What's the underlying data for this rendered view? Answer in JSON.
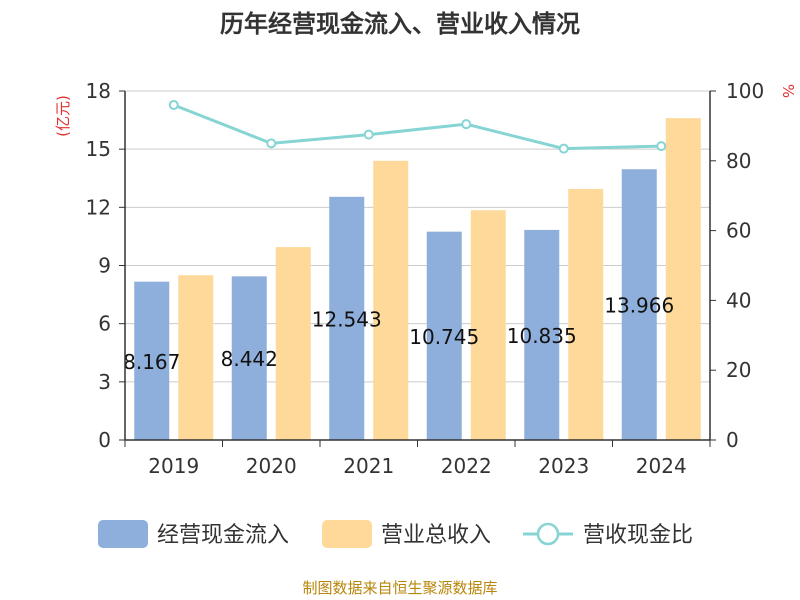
{
  "chart_data": {
    "type": "bar",
    "title": "历年经营现金流入、营业收入情况",
    "categories": [
      "2019",
      "2020",
      "2021",
      "2022",
      "2023",
      "2024"
    ],
    "y_left": {
      "unit": "(亿元)",
      "ticks": [
        "0",
        "3",
        "6",
        "9",
        "12",
        "15",
        "18"
      ],
      "lim": [
        0,
        18
      ]
    },
    "y_right": {
      "unit": "%",
      "ticks": [
        "0",
        "20",
        "40",
        "60",
        "80",
        "100"
      ],
      "lim": [
        0,
        100
      ]
    },
    "series": [
      {
        "name": "经营现金流入",
        "type": "bar",
        "axis": "left",
        "color": "#8eaedb",
        "values": [
          8.167,
          8.442,
          12.543,
          10.745,
          10.835,
          13.966
        ],
        "labels": [
          "8.167",
          "8.442",
          "12.543",
          "10.745",
          "10.835",
          "13.966"
        ]
      },
      {
        "name": "营业总收入",
        "type": "bar",
        "axis": "left",
        "color": "#ffd99a",
        "values": [
          8.5,
          9.95,
          14.4,
          11.85,
          12.95,
          16.6
        ]
      },
      {
        "name": "营收现金比",
        "type": "line",
        "axis": "right",
        "color": "#86d4d4",
        "values": [
          96,
          85,
          87.5,
          90.5,
          83.5,
          84.2
        ]
      }
    ],
    "grid": true,
    "legend": "bottom"
  },
  "source": "制图数据来自恒生聚源数据库"
}
